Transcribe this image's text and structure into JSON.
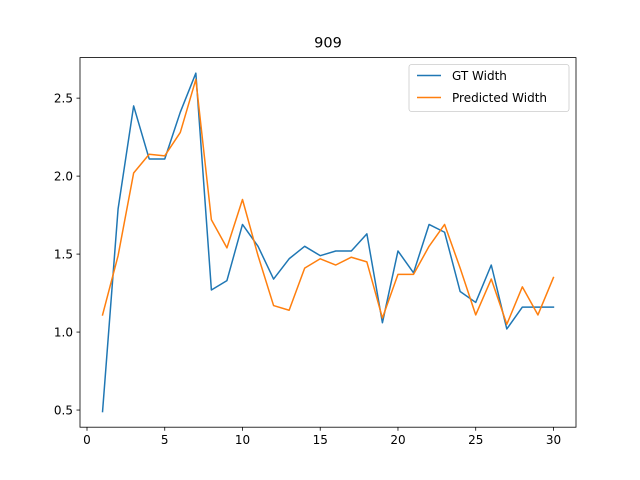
{
  "chart_data": {
    "type": "line",
    "title": "909",
    "xlabel": "",
    "ylabel": "",
    "xlim": [
      -0.45,
      31.45
    ],
    "ylim": [
      0.39,
      2.76
    ],
    "xticks": [
      0,
      5,
      10,
      15,
      20,
      25,
      30
    ],
    "yticks": [
      0.5,
      1.0,
      1.5,
      2.0,
      2.5
    ],
    "xtick_labels": [
      "0",
      "5",
      "10",
      "15",
      "20",
      "25",
      "30"
    ],
    "ytick_labels": [
      "0.5",
      "1.0",
      "1.5",
      "2.0",
      "2.5"
    ],
    "grid": false,
    "legend_position": "upper right",
    "x": [
      1,
      2,
      3,
      4,
      5,
      6,
      7,
      8,
      9,
      10,
      11,
      12,
      13,
      14,
      15,
      16,
      17,
      18,
      19,
      20,
      21,
      22,
      23,
      24,
      25,
      26,
      27,
      28,
      29,
      30
    ],
    "series": [
      {
        "name": "GT Width",
        "color": "#1f77b4",
        "values": [
          0.49,
          1.79,
          2.45,
          2.11,
          2.11,
          2.41,
          2.66,
          1.27,
          1.33,
          1.69,
          1.55,
          1.34,
          1.47,
          1.55,
          1.49,
          1.52,
          1.52,
          1.63,
          1.06,
          1.52,
          1.38,
          1.69,
          1.64,
          1.26,
          1.19,
          1.43,
          1.02,
          1.16,
          1.16,
          1.16
        ]
      },
      {
        "name": "Predicted Width",
        "color": "#ff7f0e",
        "values": [
          1.11,
          1.49,
          2.02,
          2.14,
          2.13,
          2.28,
          2.62,
          1.72,
          1.54,
          1.85,
          1.49,
          1.17,
          1.14,
          1.41,
          1.47,
          1.43,
          1.48,
          1.45,
          1.09,
          1.37,
          1.37,
          1.55,
          1.69,
          1.41,
          1.11,
          1.34,
          1.05,
          1.29,
          1.11,
          1.35
        ]
      }
    ]
  }
}
